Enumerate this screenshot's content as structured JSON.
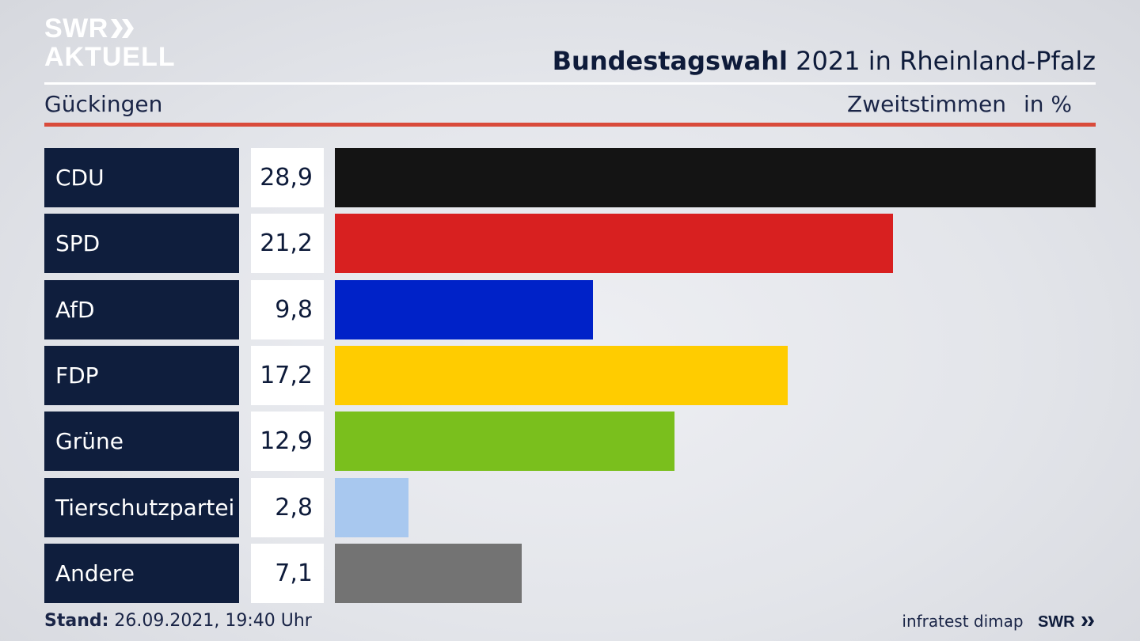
{
  "logo": {
    "line1": "SWR",
    "line2": "AKTUELL",
    "icon": "double-chevron-icon"
  },
  "header": {
    "title_bold": "Bundestagswahl",
    "title_rest": "2021 in Rheinland-Pfalz",
    "location": "Gückingen",
    "measure": "Zweitstimmen",
    "unit": "in %"
  },
  "chart_data": {
    "type": "bar",
    "orientation": "horizontal",
    "categories": [
      "CDU",
      "SPD",
      "AfD",
      "FDP",
      "Grüne",
      "Tierschutzpartei",
      "Andere"
    ],
    "values": [
      28.9,
      21.2,
      9.8,
      17.2,
      12.9,
      2.8,
      7.1
    ],
    "value_labels": [
      "28,9",
      "21,2",
      "9,8",
      "17,2",
      "12,9",
      "2,8",
      "7,1"
    ],
    "colors": [
      "#141414",
      "#d82020",
      "#0022c8",
      "#ffcc00",
      "#7abf1d",
      "#a8c8ef",
      "#737373"
    ],
    "xlim": [
      0,
      28.9
    ],
    "grid": false,
    "legend": "none"
  },
  "footer": {
    "stand_label": "Stand:",
    "stand_value": "26.09.2021, 19:40 Uhr",
    "source": "infratest dimap",
    "brand": "SWR"
  },
  "colors": {
    "accent_red": "#d94b3b",
    "navy": "#0f1e3d"
  }
}
